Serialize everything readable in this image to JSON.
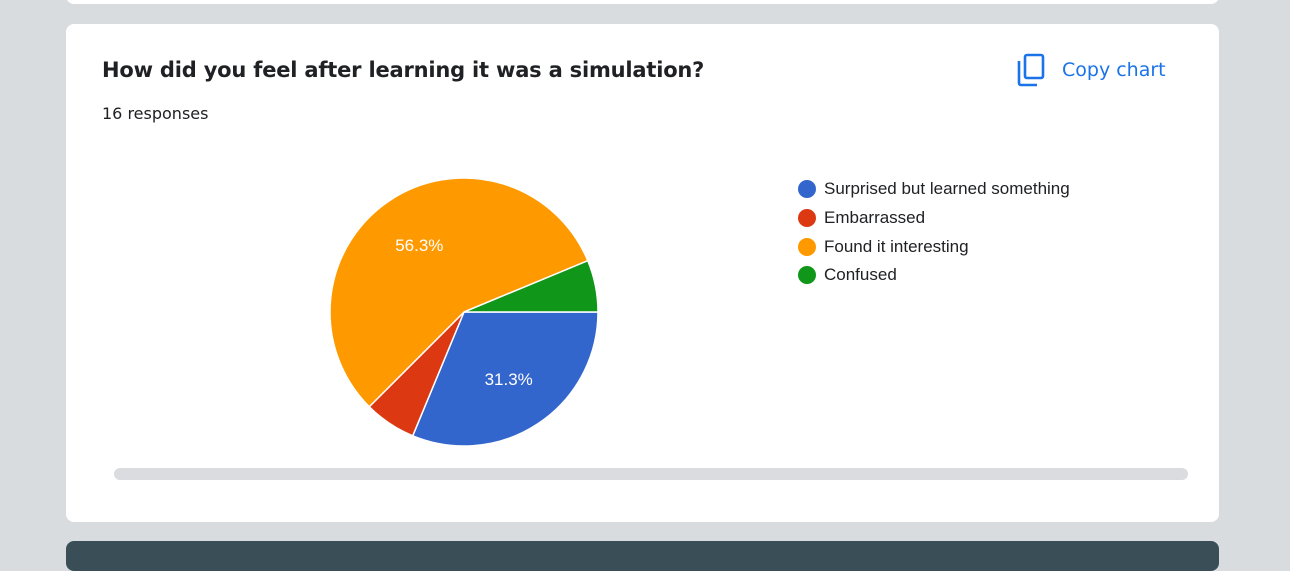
{
  "question": {
    "title": "How did you feel after learning it was a simulation?",
    "responses": "16 responses"
  },
  "toolbar": {
    "copy_label": "Copy chart",
    "copy_icon": "copy-icon"
  },
  "colors": {
    "blue": "#3366cc",
    "red": "#dc3912",
    "orange": "#ff9900",
    "green": "#109618",
    "accent": "#1a73e8"
  },
  "chart_data": {
    "type": "pie",
    "categories": [
      "Surprised but learned something",
      "Embarrassed",
      "Found it interesting",
      "Confused"
    ],
    "values": [
      5,
      1,
      9,
      1
    ],
    "data_labels": [
      "31.3%",
      "",
      "56.3%",
      ""
    ],
    "colors": [
      "#3366cc",
      "#dc3912",
      "#ff9900",
      "#109618"
    ],
    "legend_position": "right"
  }
}
